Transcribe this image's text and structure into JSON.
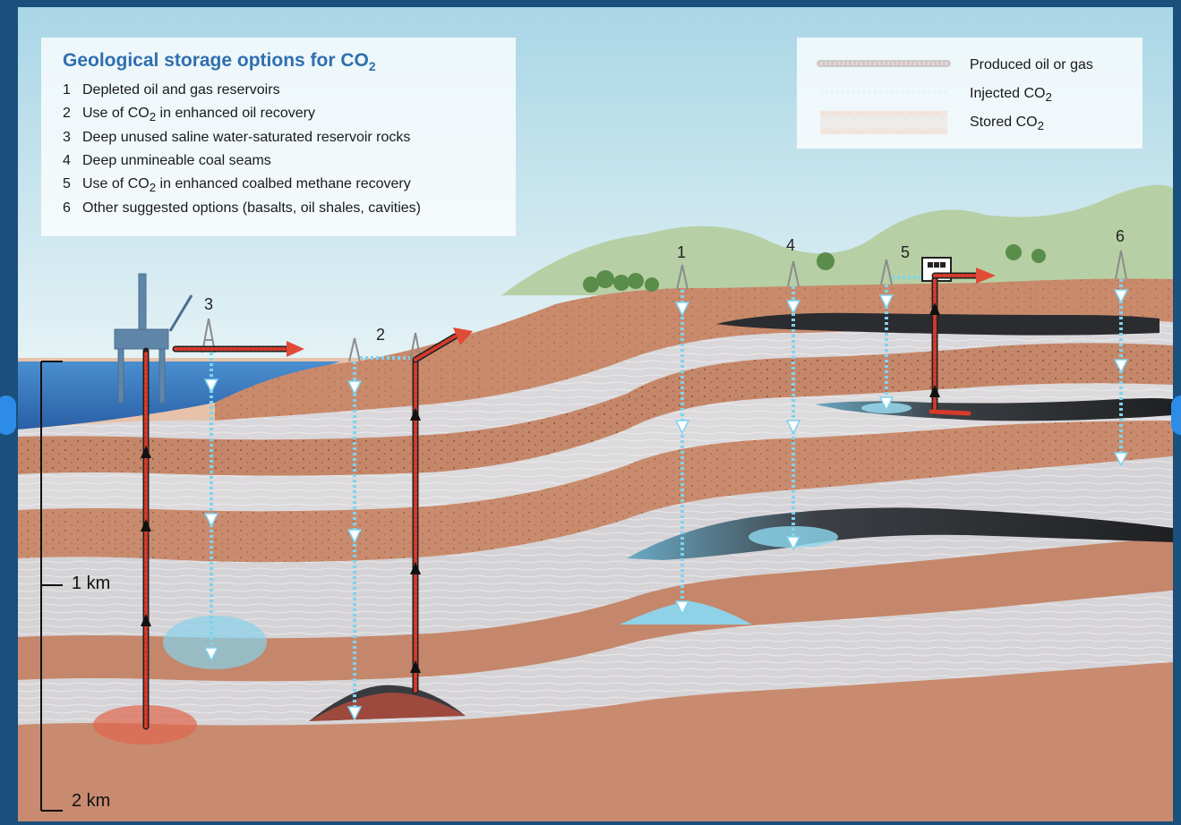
{
  "legend": {
    "title_main": "Geological storage options for CO",
    "title_sub": "2",
    "options": [
      {
        "num": "1",
        "text": "Depleted oil and gas reservoirs"
      },
      {
        "num": "2",
        "text_before": "Use of CO",
        "sub": "2",
        "text_after": " in enhanced oil recovery"
      },
      {
        "num": "3",
        "text": "Deep unused saline water-saturated reservoir rocks"
      },
      {
        "num": "4",
        "text": "Deep unmineable coal seams"
      },
      {
        "num": "5",
        "text_before": "Use of CO",
        "sub": "2",
        "text_after": " in enhanced coalbed methane recovery"
      },
      {
        "num": "6",
        "text": "Other suggested options (basalts, oil shales, cavities)"
      }
    ]
  },
  "key": {
    "produced": "Produced oil or gas",
    "injected_main": "Injected CO",
    "injected_sub": "2",
    "stored_main": "Stored CO",
    "stored_sub": "2"
  },
  "sites": {
    "s1": "1",
    "s2": "2",
    "s3": "3",
    "s4": "4",
    "s5": "5",
    "s6": "6"
  },
  "scale": {
    "km1": "1 km",
    "km2": "2 km"
  },
  "colors": {
    "background": "#1b4f7c",
    "sky": "#cfe7ef",
    "hills": "#a9c79a",
    "sea": "#3f83c5",
    "rock_brown": "#c9876a",
    "rock_light": "#e9c9b4",
    "shale_grey": "#d7d6d9",
    "coal": "#2b2b2e",
    "produced_red": "#d63a2c",
    "injected_cyan": "#7fd3ee",
    "title_blue": "#2f6fae"
  }
}
